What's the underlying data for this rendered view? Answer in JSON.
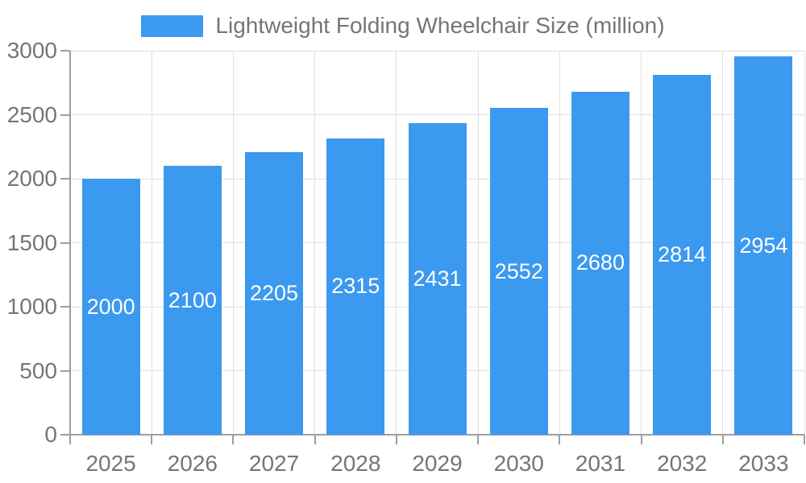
{
  "chart_data": {
    "type": "bar",
    "title": "Lightweight Folding Wheelchair Size (million)",
    "legend": [
      "Lightweight Folding Wheelchair Size (million)"
    ],
    "legend_position": "top",
    "categories": [
      "2025",
      "2026",
      "2027",
      "2028",
      "2029",
      "2030",
      "2031",
      "2032",
      "2033"
    ],
    "series": [
      {
        "name": "Lightweight Folding Wheelchair Size (million)",
        "values": [
          2000,
          2100,
          2205,
          2315,
          2431,
          2552,
          2680,
          2814,
          2954
        ]
      }
    ],
    "data_labels": [
      "2000",
      "2100",
      "2205",
      "2315",
      "2431",
      "2552",
      "2680",
      "2814",
      "2954"
    ],
    "xlabel": "",
    "ylabel": "",
    "ylim": [
      0,
      3000
    ],
    "yticks": [
      0,
      500,
      1000,
      1500,
      2000,
      2500,
      3000
    ],
    "grid": true,
    "colors": {
      "bar": "#3B99EF",
      "bar_label_text": "#FFFFFF",
      "axis_text": "#757575",
      "gridline": "#E0E0E0",
      "axis_line": "#9E9E9E",
      "background": "#FFFFFF"
    }
  }
}
